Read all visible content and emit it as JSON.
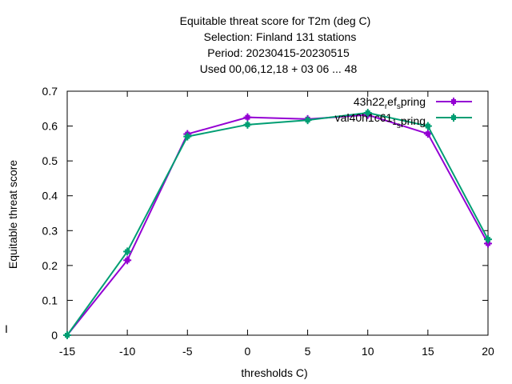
{
  "chart_data": {
    "type": "line",
    "title_lines": [
      "Equitable threat score  for T2m (deg C)",
      "Selection: Finland    131 stations",
      "Period: 20230415-20230515",
      "Used  00,06,12,18  + 03 06 ... 48"
    ],
    "xlabel": "thresholds C)",
    "ylabel": "Equitable threat score",
    "xlim": [
      -15,
      20
    ],
    "ylim": [
      0,
      0.7
    ],
    "x_ticks": [
      -15,
      -10,
      -5,
      0,
      5,
      10,
      15,
      20
    ],
    "y_ticks": [
      0,
      0.1,
      0.2,
      0.3,
      0.4,
      0.5,
      0.6,
      0.7
    ],
    "grid": false,
    "legend_position": "top-right",
    "x": [
      -15,
      -10,
      -5,
      0,
      5,
      10,
      15,
      20
    ],
    "series": [
      {
        "name": "43h22_ref_spring",
        "legend_parts": [
          "43h22",
          "r",
          "ef",
          "s",
          "pring"
        ],
        "color": "#9400d3",
        "values": [
          0.0,
          0.215,
          0.577,
          0.625,
          0.62,
          0.632,
          0.578,
          0.263
        ]
      },
      {
        "name": "val40h1c61_1_spring",
        "legend_parts": [
          "val40h1c61",
          "1",
          "",
          "s",
          "pring"
        ],
        "color": "#009e73",
        "values": [
          0.0,
          0.24,
          0.57,
          0.604,
          0.617,
          0.638,
          0.6,
          0.275
        ]
      }
    ]
  },
  "y_axis_mark": "I"
}
